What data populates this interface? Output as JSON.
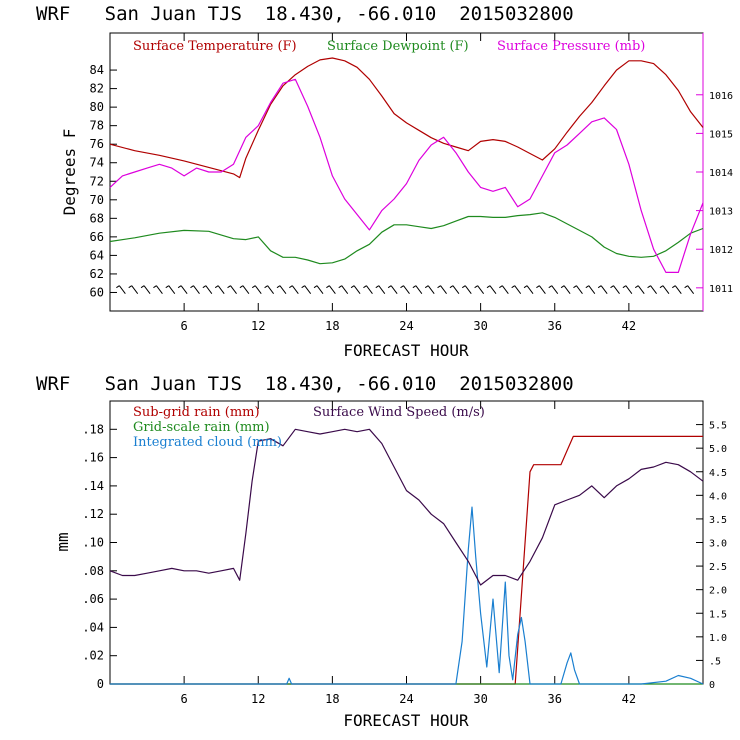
{
  "chart_data": [
    {
      "type": "line",
      "title": "WRF   San Juan TJS  18.430, -66.010  2015032800",
      "xlabel": "FORECAST HOUR",
      "ylabel": "Degrees F",
      "xlim": [
        0,
        48
      ],
      "x_ticks": [
        6,
        12,
        18,
        24,
        30,
        36,
        42
      ],
      "ylim": [
        58,
        88
      ],
      "y_ticks": [
        60,
        62,
        64,
        66,
        68,
        70,
        72,
        74,
        76,
        78,
        80,
        82,
        84
      ],
      "y2lim": [
        1010.4,
        1017.6
      ],
      "y2_ticks": [
        1011,
        1012,
        1013,
        1014,
        1015,
        1016
      ],
      "wind_barbs_row": true,
      "series": [
        {
          "name": "Surface Temperature (F)",
          "color": "#b00000",
          "axis": "left",
          "x": [
            0,
            2,
            4,
            6,
            8,
            10,
            10.5,
            11,
            12,
            13,
            14,
            15,
            16,
            17,
            18,
            19,
            20,
            21,
            22,
            23,
            24,
            25,
            26,
            27,
            28,
            29,
            30,
            31,
            32,
            33,
            34,
            35,
            36,
            37,
            38,
            39,
            40,
            41,
            42,
            43,
            44,
            45,
            46,
            47,
            48
          ],
          "y": [
            76,
            75.3,
            74.8,
            74.2,
            73.5,
            72.8,
            72.4,
            74.5,
            77.5,
            80.3,
            82.3,
            83.5,
            84.4,
            85.1,
            85.3,
            85,
            84.3,
            83,
            81.2,
            79.3,
            78.3,
            77.5,
            76.7,
            76.1,
            75.7,
            75.3,
            76.3,
            76.5,
            76.3,
            75.7,
            75,
            74.3,
            75.5,
            77.3,
            79,
            80.5,
            82.3,
            84,
            85,
            85,
            84.7,
            83.5,
            81.8,
            79.5,
            77.8
          ]
        },
        {
          "name": "Surface Dewpoint (F)",
          "color": "#1e8a1e",
          "axis": "left",
          "x": [
            0,
            2,
            4,
            6,
            8,
            10,
            11,
            12,
            13,
            14,
            15,
            16,
            17,
            18,
            19,
            20,
            21,
            22,
            23,
            24,
            25,
            26,
            27,
            28,
            29,
            30,
            31,
            32,
            33,
            34,
            35,
            36,
            37,
            38,
            39,
            40,
            41,
            42,
            43,
            44,
            45,
            46,
            47,
            48
          ],
          "y": [
            65.5,
            65.9,
            66.4,
            66.7,
            66.6,
            65.8,
            65.7,
            66,
            64.5,
            63.8,
            63.8,
            63.5,
            63.1,
            63.2,
            63.6,
            64.5,
            65.2,
            66.5,
            67.3,
            67.3,
            67.1,
            66.9,
            67.2,
            67.7,
            68.2,
            68.2,
            68.1,
            68.1,
            68.3,
            68.4,
            68.6,
            68.1,
            67.4,
            66.7,
            66,
            64.9,
            64.2,
            63.9,
            63.8,
            63.9,
            64.5,
            65.4,
            66.4,
            66.9
          ]
        },
        {
          "name": "Surface Pressure (mb)",
          "color": "#dd00dd",
          "axis": "right",
          "x": [
            0,
            1,
            2,
            3,
            4,
            5,
            6,
            7,
            8,
            9,
            10,
            11,
            12,
            13,
            14,
            15,
            16,
            17,
            18,
            19,
            20,
            21,
            22,
            23,
            24,
            25,
            26,
            27,
            28,
            29,
            30,
            31,
            32,
            33,
            34,
            35,
            36,
            37,
            38,
            39,
            40,
            41,
            42,
            43,
            44,
            45,
            46,
            47,
            48
          ],
          "y": [
            1013.6,
            1013.9,
            1014.0,
            1014.1,
            1014.2,
            1014.1,
            1013.9,
            1014.1,
            1014.0,
            1014.0,
            1014.2,
            1014.9,
            1015.2,
            1015.8,
            1016.3,
            1016.4,
            1015.7,
            1014.9,
            1013.9,
            1013.3,
            1012.9,
            1012.5,
            1013.0,
            1013.3,
            1013.7,
            1014.3,
            1014.7,
            1014.9,
            1014.5,
            1014.0,
            1013.6,
            1013.5,
            1013.6,
            1013.1,
            1013.3,
            1013.9,
            1014.5,
            1014.7,
            1015.0,
            1015.3,
            1015.4,
            1015.1,
            1014.2,
            1013.0,
            1012.0,
            1011.4,
            1011.4,
            1012.4,
            1013.2
          ]
        }
      ]
    },
    {
      "type": "line",
      "title": "WRF   San Juan TJS  18.430, -66.010  2015032800",
      "xlabel": "FORECAST HOUR",
      "ylabel": "mm",
      "xlim": [
        0,
        48
      ],
      "x_ticks": [
        6,
        12,
        18,
        24,
        30,
        36,
        42
      ],
      "ylim": [
        0,
        0.2
      ],
      "y_ticks": [
        0,
        0.02,
        0.04,
        0.06,
        0.08,
        0.1,
        0.12,
        0.14,
        0.16,
        0.18
      ],
      "y_tick_labels": [
        "0",
        ".02",
        ".04",
        ".06",
        ".08",
        ".10",
        ".12",
        ".14",
        ".16",
        ".18"
      ],
      "y2lim": [
        0,
        6
      ],
      "y2_ticks": [
        0,
        0.5,
        1,
        1.5,
        2,
        2.5,
        3,
        3.5,
        4,
        4.5,
        5,
        5.5
      ],
      "y2_tick_labels": [
        "0",
        ".5",
        "1.0",
        "1.5",
        "2.0",
        "2.5",
        "3.0",
        "3.5",
        "4.0",
        "4.5",
        "5.0",
        "5.5"
      ],
      "series": [
        {
          "name": "Sub-grid rain (mm)",
          "color": "#b00000",
          "axis": "left",
          "x": [
            0,
            32.8,
            34,
            34.3,
            36.5,
            37,
            37.5,
            48
          ],
          "y": [
            0,
            0,
            0.15,
            0.155,
            0.155,
            0.165,
            0.175,
            0.175
          ]
        },
        {
          "name": "Grid-scale rain (mm)",
          "color": "#1e8a1e",
          "axis": "left",
          "x": [
            0,
            48
          ],
          "y": [
            0,
            0
          ]
        },
        {
          "name": "Integrated cloud (mm)",
          "color": "#1a7fd0",
          "axis": "left",
          "x": [
            0,
            14.3,
            14.5,
            14.7,
            28,
            28.5,
            29,
            29.3,
            29.6,
            30,
            30.5,
            31,
            31.5,
            32,
            32.3,
            32.6,
            33,
            33.3,
            33.6,
            34,
            34.5,
            36.5,
            37,
            37.3,
            37.6,
            38,
            43,
            45,
            46,
            47,
            48
          ],
          "y": [
            0,
            0,
            0.004,
            0,
            0,
            0.03,
            0.095,
            0.125,
            0.09,
            0.05,
            0.012,
            0.06,
            0.008,
            0.072,
            0.02,
            0.003,
            0.035,
            0.047,
            0.03,
            0,
            0,
            0,
            0.015,
            0.022,
            0.01,
            0,
            0,
            0.002,
            0.006,
            0.004,
            0
          ]
        },
        {
          "name": "Surface Wind Speed (m/s)",
          "color": "#3a0a4a",
          "axis": "right",
          "x": [
            0,
            1,
            2,
            3,
            4,
            5,
            6,
            7,
            8,
            9,
            10,
            10.5,
            11,
            11.5,
            12,
            13,
            14,
            15,
            16,
            17,
            18,
            19,
            20,
            21,
            22,
            23,
            24,
            25,
            26,
            27,
            28,
            29,
            30,
            31,
            32,
            33,
            34,
            35,
            36,
            37,
            38,
            39,
            40,
            41,
            42,
            43,
            44,
            45,
            46,
            47,
            48
          ],
          "y": [
            2.4,
            2.3,
            2.3,
            2.35,
            2.4,
            2.45,
            2.4,
            2.4,
            2.35,
            2.4,
            2.45,
            2.2,
            3.2,
            4.3,
            5.15,
            5.2,
            5.05,
            5.4,
            5.35,
            5.3,
            5.35,
            5.4,
            5.35,
            5.4,
            5.1,
            4.6,
            4.1,
            3.9,
            3.6,
            3.4,
            3.0,
            2.6,
            2.1,
            2.3,
            2.3,
            2.2,
            2.6,
            3.1,
            3.8,
            3.9,
            4.0,
            4.2,
            3.95,
            4.2,
            4.35,
            4.55,
            4.6,
            4.7,
            4.65,
            4.5,
            4.3
          ]
        }
      ]
    }
  ]
}
